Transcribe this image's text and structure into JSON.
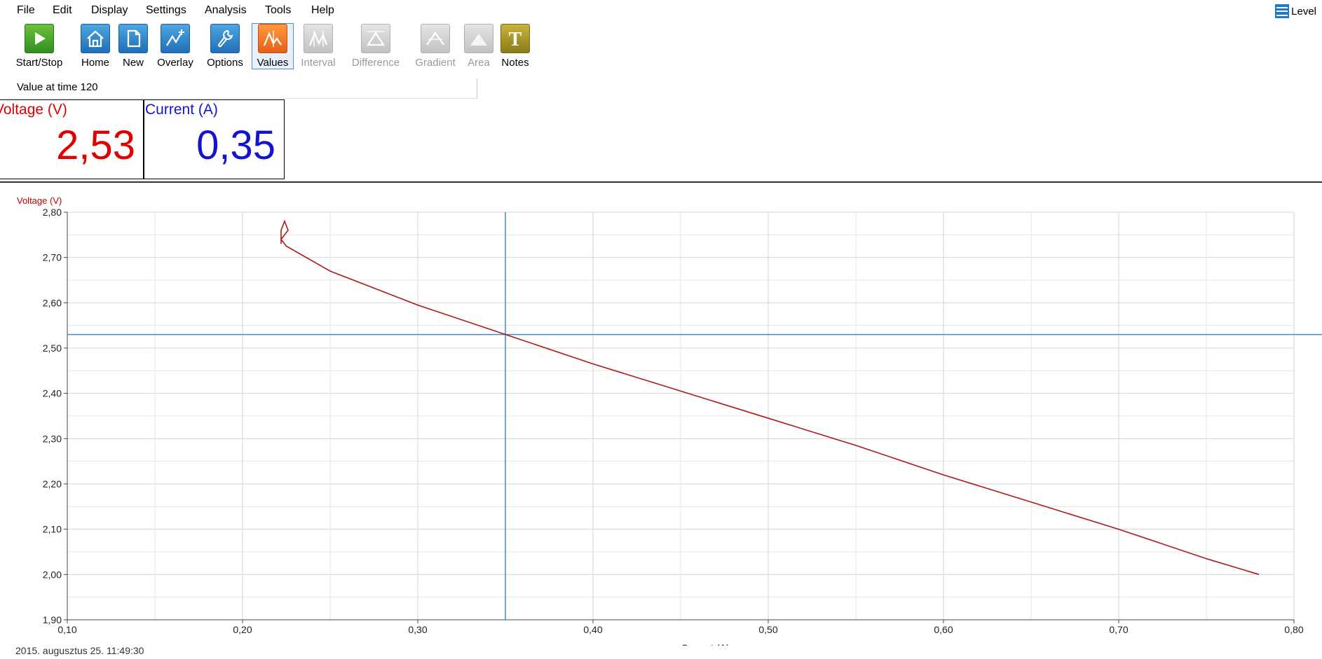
{
  "menu": [
    "File",
    "Edit",
    "Display",
    "Settings",
    "Analysis",
    "Tools",
    "Help"
  ],
  "level_label": "Level",
  "toolbar": [
    {
      "label": "Start/Stop",
      "icon": "play-icon",
      "state": "enabled"
    },
    {
      "label": "Home",
      "icon": "home-icon",
      "state": "enabled"
    },
    {
      "label": "New",
      "icon": "new-page-icon",
      "state": "enabled"
    },
    {
      "label": "Overlay",
      "icon": "overlay-icon",
      "state": "enabled"
    },
    {
      "label": "Options",
      "icon": "wrench-icon",
      "state": "enabled"
    },
    {
      "label": "Values",
      "icon": "values-icon",
      "state": "selected"
    },
    {
      "label": "Interval",
      "icon": "interval-icon",
      "state": "disabled"
    },
    {
      "label": "Difference",
      "icon": "difference-icon",
      "state": "disabled"
    },
    {
      "label": "Gradient",
      "icon": "gradient-icon",
      "state": "disabled"
    },
    {
      "label": "Area",
      "icon": "area-icon",
      "state": "disabled"
    },
    {
      "label": "Notes",
      "icon": "notes-icon",
      "state": "enabled"
    }
  ],
  "status_text": "Value at time 120",
  "meters": {
    "voltage": {
      "label": "Voltage (V)",
      "value": "2,53",
      "color": "#e00000"
    },
    "current": {
      "label": "Current (A)",
      "value": "0,35",
      "color": "#1414d0"
    }
  },
  "timestamp": "2015. augusztus 25.  11:49:30",
  "chart_data": {
    "type": "line",
    "title": "",
    "xlabel": "Current (A)",
    "ylabel": "Voltage (V)",
    "xlim": [
      0.1,
      0.8
    ],
    "ylim": [
      1.9,
      2.8
    ],
    "x_ticks": [
      "0,10",
      "0,20",
      "0,30",
      "0,40",
      "0,50",
      "0,60",
      "0,70",
      "0,80"
    ],
    "y_ticks": [
      "1,90",
      "2,00",
      "2,10",
      "2,20",
      "2,30",
      "2,40",
      "2,50",
      "2,60",
      "2,70",
      "2,80"
    ],
    "grid": true,
    "cursor": {
      "x": 0.35,
      "y": 2.53,
      "color": "#3a8ccc"
    },
    "series": [
      {
        "color": "#b01818",
        "points": [
          [
            0.222,
            2.73
          ],
          [
            0.222,
            2.76
          ],
          [
            0.224,
            2.78
          ],
          [
            0.226,
            2.76
          ],
          [
            0.224,
            2.75
          ],
          [
            0.222,
            2.74
          ],
          [
            0.225,
            2.725
          ],
          [
            0.25,
            2.67
          ],
          [
            0.3,
            2.595
          ],
          [
            0.35,
            2.53
          ],
          [
            0.4,
            2.465
          ],
          [
            0.45,
            2.405
          ],
          [
            0.5,
            2.345
          ],
          [
            0.55,
            2.285
          ],
          [
            0.6,
            2.22
          ],
          [
            0.65,
            2.16
          ],
          [
            0.7,
            2.1
          ],
          [
            0.75,
            2.035
          ],
          [
            0.78,
            2.0
          ]
        ]
      }
    ]
  }
}
